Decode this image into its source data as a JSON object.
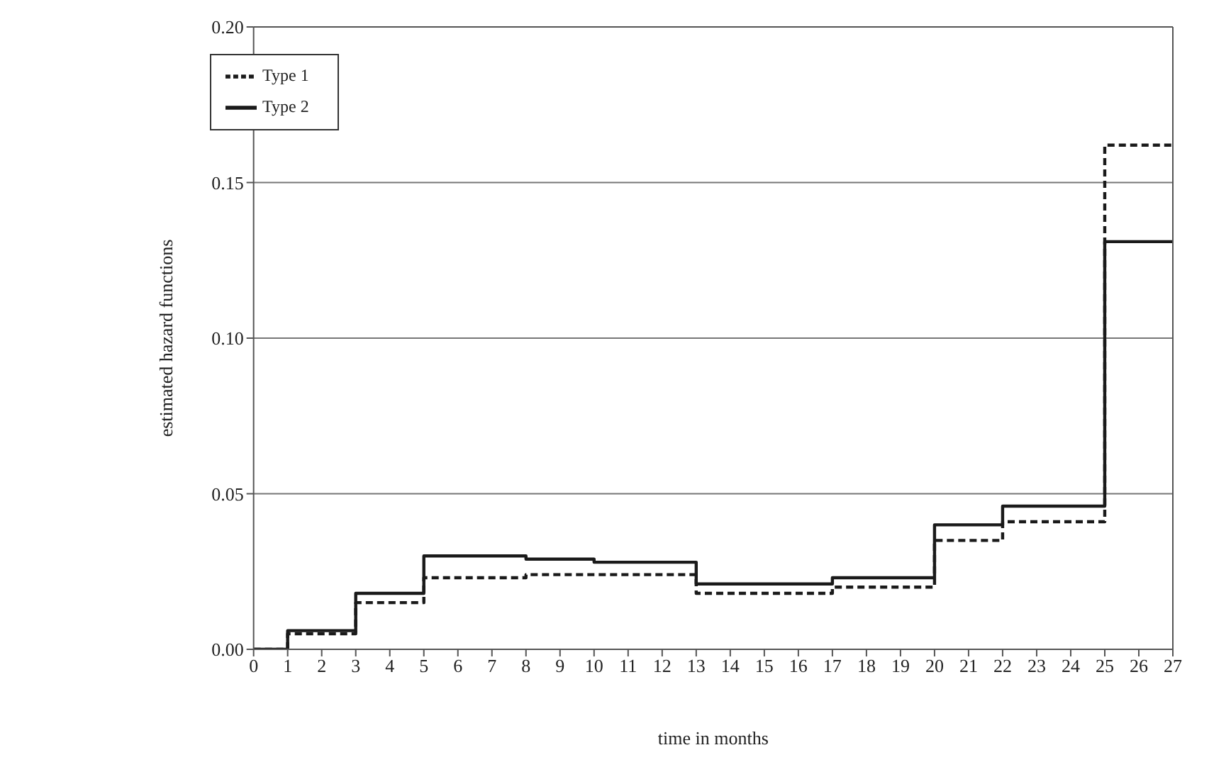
{
  "chart_data": {
    "type": "step",
    "xlabel": "time in months",
    "ylabel": "estimated hazard functions",
    "x": [
      0,
      1,
      3,
      5,
      8,
      10,
      13,
      17,
      20,
      22,
      25,
      27
    ],
    "series": [
      {
        "name": "Type 1",
        "color": "#1a1a1a",
        "line_style": "dashed",
        "values": [
          0,
          0.005,
          0.015,
          0.023,
          0.024,
          0.024,
          0.018,
          0.02,
          0.035,
          0.041,
          0.162,
          0.162
        ]
      },
      {
        "name": "Type 2",
        "color": "#1a1a1a",
        "line_style": "solid",
        "values": [
          0,
          0.006,
          0.018,
          0.03,
          0.029,
          0.028,
          0.021,
          0.023,
          0.04,
          0.046,
          0.131,
          0.131
        ]
      }
    ],
    "xlim": [
      0,
      27
    ],
    "xticks": [
      0,
      1,
      2,
      3,
      4,
      5,
      6,
      7,
      8,
      9,
      10,
      11,
      12,
      13,
      14,
      15,
      16,
      17,
      18,
      19,
      20,
      21,
      22,
      23,
      24,
      25,
      26,
      27
    ],
    "ylim": [
      0,
      0.2
    ],
    "yticks": [
      {
        "value": 0,
        "label": "0.00"
      },
      {
        "value": 0.05,
        "label": "0.05"
      },
      {
        "value": 0.1,
        "label": "0.10"
      },
      {
        "value": 0.15,
        "label": "0.15"
      },
      {
        "value": 0.2,
        "label": "0.20"
      }
    ],
    "grid": "y",
    "legend": "top left",
    "marker": "none"
  }
}
